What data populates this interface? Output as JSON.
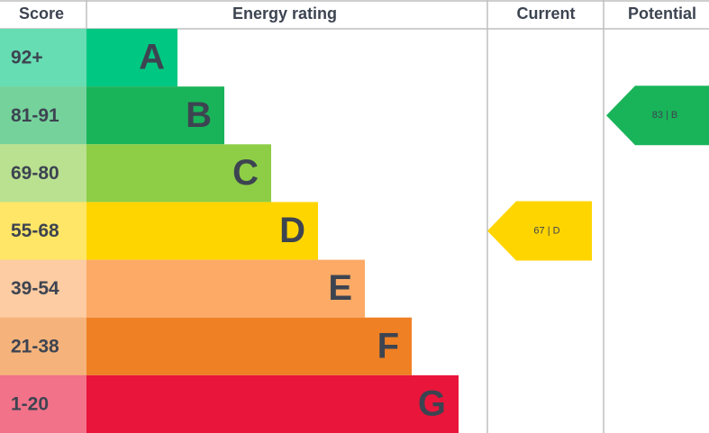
{
  "header": {
    "score": "Score",
    "rating": "Energy rating",
    "current": "Current",
    "potential": "Potential"
  },
  "rows": [
    {
      "score": "92+",
      "letter": "A",
      "color": "#00c781"
    },
    {
      "score": "81-91",
      "letter": "B",
      "color": "#19b459"
    },
    {
      "score": "69-80",
      "letter": "C",
      "color": "#8dce46"
    },
    {
      "score": "55-68",
      "letter": "D",
      "color": "#ffd500"
    },
    {
      "score": "39-54",
      "letter": "E",
      "color": "#fcaa65"
    },
    {
      "score": "21-38",
      "letter": "F",
      "color": "#ef8023"
    },
    {
      "score": "1-20",
      "letter": "G",
      "color": "#e9153b"
    }
  ],
  "current": {
    "label": "67 | D"
  },
  "potential": {
    "label": "83 | B"
  }
}
